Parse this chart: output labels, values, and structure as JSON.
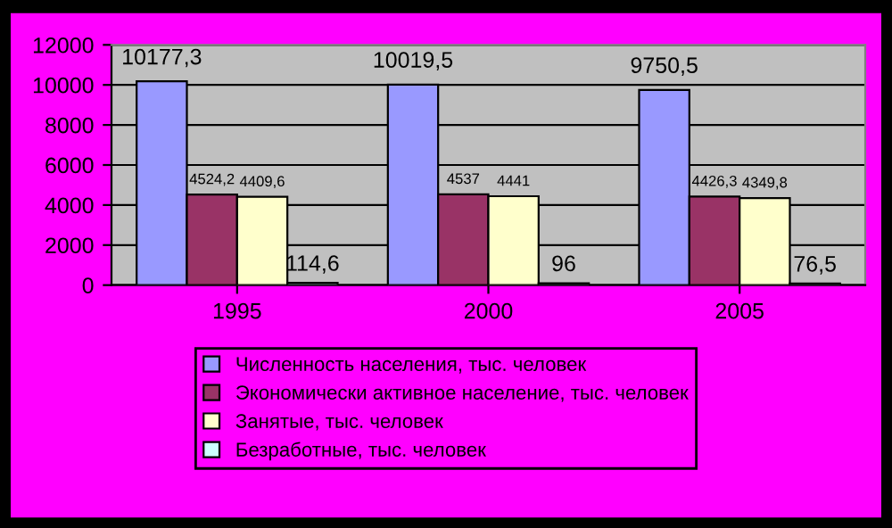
{
  "chart_data": {
    "type": "bar",
    "categories": [
      "1995",
      "2000",
      "2005"
    ],
    "series": [
      {
        "name": "Численность населения, тыс. человек",
        "color": "#9999ff",
        "values": [
          10177.3,
          10019.5,
          9750.5
        ],
        "value_labels": [
          "10177,3",
          "10019,5",
          "9750,5"
        ]
      },
      {
        "name": "Экономически активное население, тыс. человек",
        "color": "#993366",
        "values": [
          4524.2,
          4537,
          4426.3
        ],
        "value_labels": [
          "4524,2",
          "4537",
          "4426,3"
        ]
      },
      {
        "name": "Занятые, тыс. человек",
        "color": "#ffffcc",
        "values": [
          4409.6,
          4441,
          4349.8
        ],
        "value_labels": [
          "4409,6",
          "4441",
          "4349,8"
        ]
      },
      {
        "name": "Безработные, тыс. человек",
        "color": "#ccffff",
        "values": [
          114.6,
          96,
          76.5
        ],
        "value_labels": [
          "114,6",
          "96",
          "76,5"
        ]
      }
    ],
    "ylim": [
      0,
      12000
    ],
    "yticks": [
      0,
      2000,
      4000,
      6000,
      8000,
      10000,
      12000
    ],
    "grid": "y",
    "legend": "bottom"
  }
}
